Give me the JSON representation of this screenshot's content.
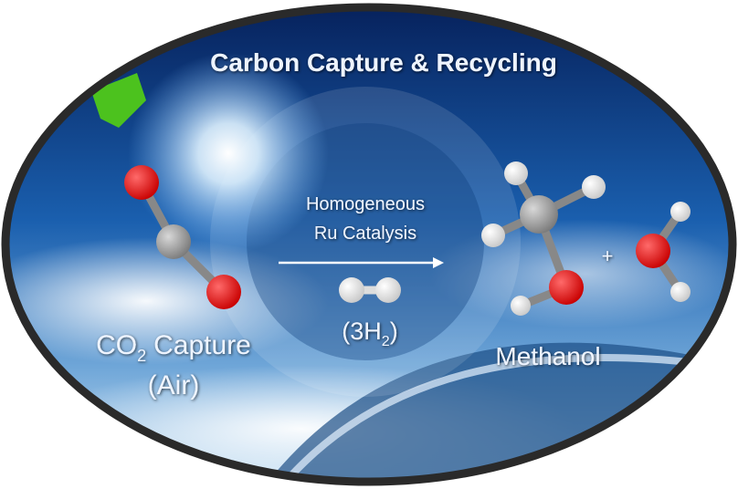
{
  "title": "Carbon Capture & Recycling",
  "catalyst": [
    "Homogeneous",
    "Ru Catalysis"
  ],
  "reactant": {
    "formula": "CO",
    "subscript": "2",
    "name": "Capture",
    "source": "(Air)"
  },
  "reagent": {
    "prefix": "(3H",
    "subscript": "2",
    "suffix": ")"
  },
  "product": "Methanol",
  "plus": "+"
}
